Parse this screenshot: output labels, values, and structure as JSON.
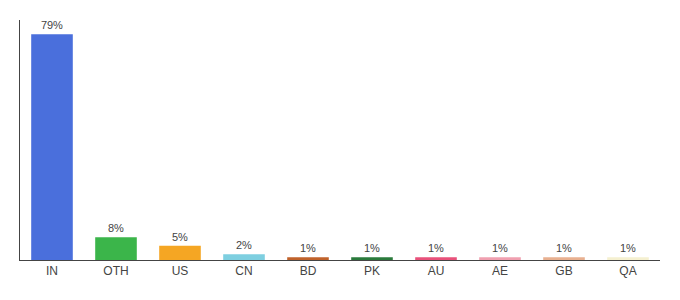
{
  "chart_data": {
    "type": "bar",
    "categories": [
      "IN",
      "OTH",
      "US",
      "CN",
      "BD",
      "PK",
      "AU",
      "AE",
      "GB",
      "QA"
    ],
    "values": [
      79,
      8,
      5,
      2,
      1,
      1,
      1,
      1,
      1,
      1
    ],
    "value_labels": [
      "79%",
      "8%",
      "5%",
      "2%",
      "1%",
      "1%",
      "1%",
      "1%",
      "1%",
      "1%"
    ],
    "colors": [
      "#4a6fdc",
      "#3bb54a",
      "#f5a623",
      "#7ecfe0",
      "#c0622b",
      "#2a7a3b",
      "#e8517a",
      "#f0a0b0",
      "#e8b090",
      "#f5f0d0"
    ],
    "ylim": [
      0,
      84
    ],
    "grid": false,
    "data_labels": true,
    "tick_labels": "x"
  }
}
